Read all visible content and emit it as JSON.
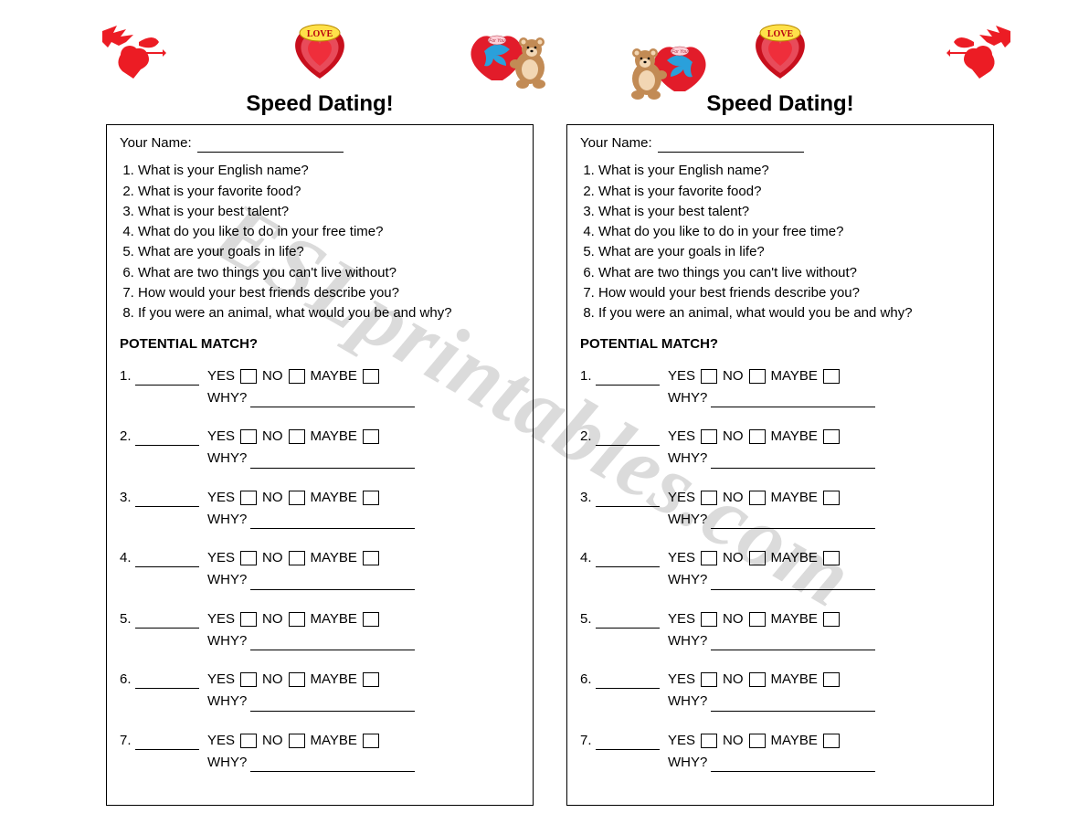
{
  "watermark": "ESLprintables.com",
  "worksheet": {
    "title": "Speed Dating!",
    "name_label": "Your Name:",
    "questions": [
      "What is your English name?",
      "What is your favorite food?",
      "What is your best talent?",
      "What do you like to do in your free time?",
      "What are your goals in life?",
      "What are two things you can't live without?",
      "How would your best friends describe you?",
      "If you were an animal, what would you be and why?"
    ],
    "match_heading": "POTENTIAL MATCH?",
    "match_count": 7,
    "yes_label": "YES",
    "no_label": "NO",
    "maybe_label": "MAYBE",
    "why_label": "WHY?"
  },
  "icons": {
    "heart_love_text": "LOVE",
    "heart_foryou_text": "For You"
  },
  "style": {
    "cupid_color": "#ec1c24",
    "heart_outer": "#c80f1d",
    "heart_inner": "#e84b5a",
    "love_banner": "#ffe14a",
    "bow_color": "#2aa0db",
    "bear_body": "#c28b55",
    "bear_muzzle": "#f2d6b3",
    "border_color": "#000000",
    "text_color": "#000000",
    "background": "#ffffff",
    "title_fontsize": 24,
    "body_fontsize": 15,
    "font_family": "Verdana"
  }
}
